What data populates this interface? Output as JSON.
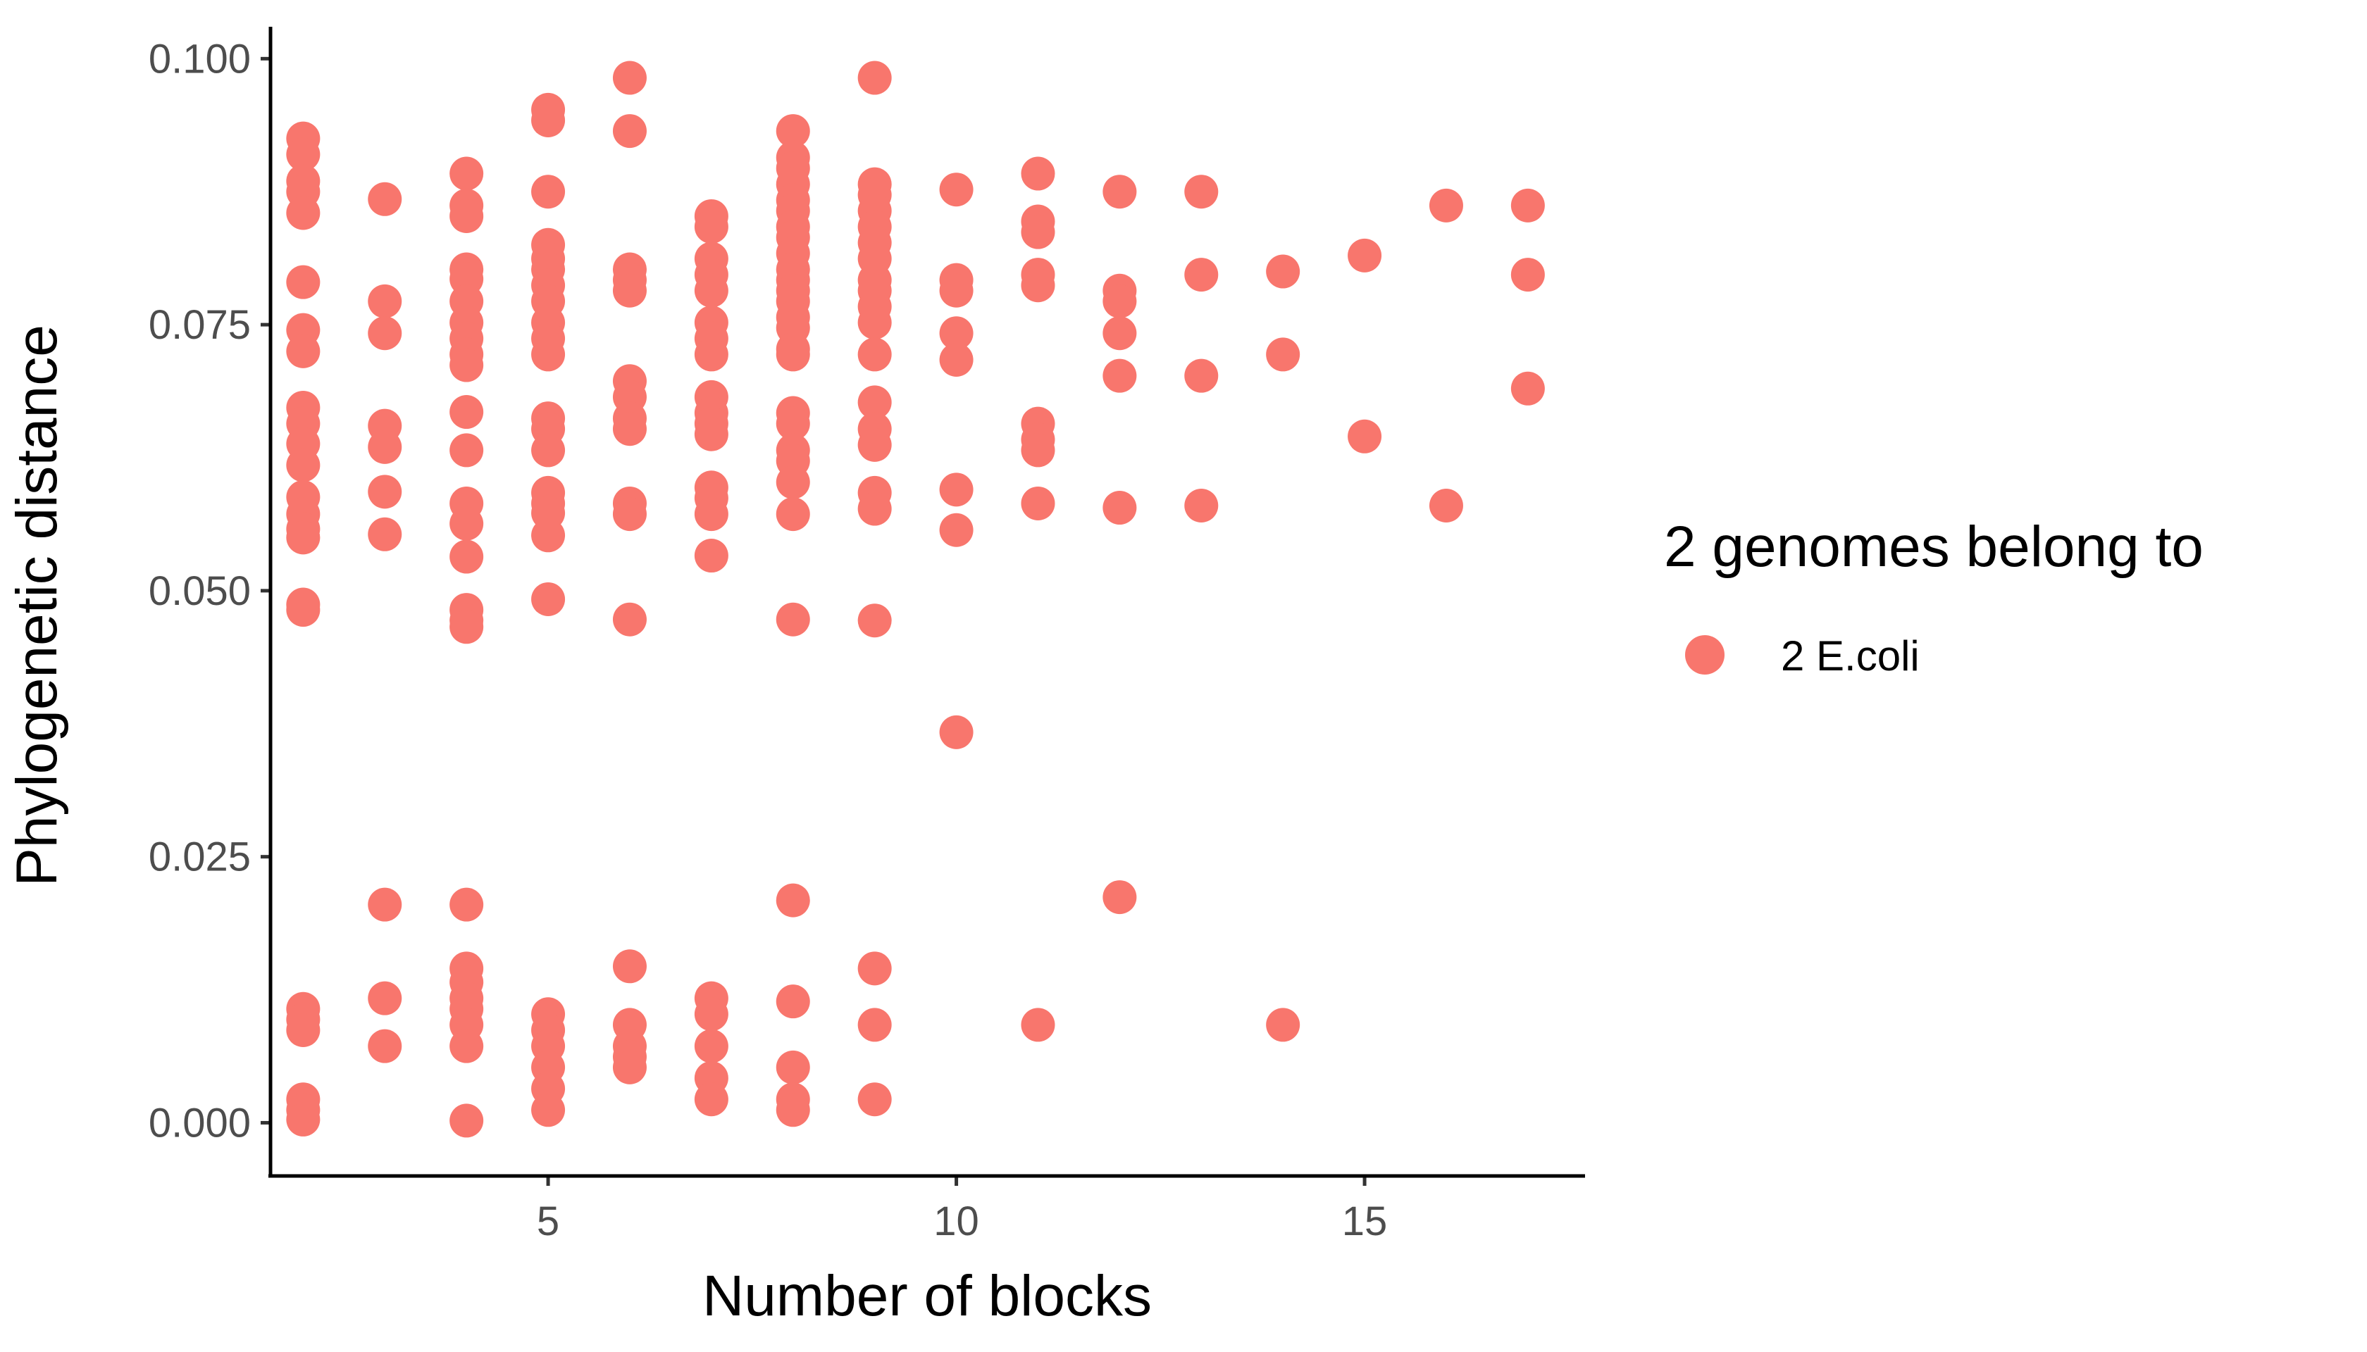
{
  "chart_data": {
    "type": "scatter",
    "xlabel": "Number of blocks",
    "ylabel": "Phylogenetic distance",
    "xlim": [
      1.6,
      17.7
    ],
    "ylim": [
      -0.005,
      0.103
    ],
    "x_ticks": [
      5,
      10,
      15
    ],
    "x_tick_labels": [
      "5",
      "10",
      "15"
    ],
    "y_ticks": [
      0,
      0.025,
      0.05,
      0.075,
      0.1
    ],
    "y_tick_labels": [
      "0.000",
      "0.025",
      "0.050",
      "0.075",
      "0.100"
    ],
    "grid": false,
    "legend": {
      "title": "2 genomes belong to",
      "placement": "right",
      "entries": [
        {
          "label": "2 E.coli",
          "color": "#F8766D"
        }
      ]
    },
    "series": [
      {
        "name": "2 E.coli",
        "color": "#F8766D",
        "points": [
          [
            2,
            0.0925
          ],
          [
            2,
            0.091
          ],
          [
            2,
            0.0885
          ],
          [
            2,
            0.0875
          ],
          [
            2,
            0.0855
          ],
          [
            2,
            0.079
          ],
          [
            2,
            0.0745
          ],
          [
            2,
            0.0725
          ],
          [
            2,
            0.0672
          ],
          [
            2,
            0.0657
          ],
          [
            2,
            0.0638
          ],
          [
            2,
            0.0618
          ],
          [
            2,
            0.0588
          ],
          [
            2,
            0.0572
          ],
          [
            2,
            0.0558
          ],
          [
            2,
            0.055
          ],
          [
            2,
            0.0487
          ],
          [
            2,
            0.0482
          ],
          [
            2,
            0.0107
          ],
          [
            2,
            0.0097
          ],
          [
            2,
            0.0087
          ],
          [
            2,
            0.0022
          ],
          [
            2,
            0.0012
          ],
          [
            2,
            0.0003
          ],
          [
            3,
            0.0868
          ],
          [
            3,
            0.0772
          ],
          [
            3,
            0.0742
          ],
          [
            3,
            0.0655
          ],
          [
            3,
            0.0635
          ],
          [
            3,
            0.0593
          ],
          [
            3,
            0.0553
          ],
          [
            3,
            0.0205
          ],
          [
            3,
            0.0117
          ],
          [
            3,
            0.0072
          ],
          [
            4,
            0.0892
          ],
          [
            4,
            0.0862
          ],
          [
            4,
            0.0852
          ],
          [
            4,
            0.0802
          ],
          [
            4,
            0.0793
          ],
          [
            4,
            0.0772
          ],
          [
            4,
            0.0752
          ],
          [
            4,
            0.0737
          ],
          [
            4,
            0.0722
          ],
          [
            4,
            0.0712
          ],
          [
            4,
            0.0668
          ],
          [
            4,
            0.0632
          ],
          [
            4,
            0.0582
          ],
          [
            4,
            0.0563
          ],
          [
            4,
            0.0532
          ],
          [
            4,
            0.0482
          ],
          [
            4,
            0.0472
          ],
          [
            4,
            0.0466
          ],
          [
            4,
            0.0205
          ],
          [
            4,
            0.0145
          ],
          [
            4,
            0.0132
          ],
          [
            4,
            0.0117
          ],
          [
            4,
            0.0107
          ],
          [
            4,
            0.0092
          ],
          [
            4,
            0.0072
          ],
          [
            4,
            0.0002
          ],
          [
            5,
            0.0952
          ],
          [
            5,
            0.0942
          ],
          [
            5,
            0.0875
          ],
          [
            5,
            0.0825
          ],
          [
            5,
            0.0812
          ],
          [
            5,
            0.0802
          ],
          [
            5,
            0.0787
          ],
          [
            5,
            0.0772
          ],
          [
            5,
            0.0752
          ],
          [
            5,
            0.0737
          ],
          [
            5,
            0.0722
          ],
          [
            5,
            0.0662
          ],
          [
            5,
            0.0652
          ],
          [
            5,
            0.0632
          ],
          [
            5,
            0.0592
          ],
          [
            5,
            0.0582
          ],
          [
            5,
            0.0573
          ],
          [
            5,
            0.0552
          ],
          [
            5,
            0.0492
          ],
          [
            5,
            0.0102
          ],
          [
            5,
            0.0087
          ],
          [
            5,
            0.0072
          ],
          [
            5,
            0.0052
          ],
          [
            5,
            0.0032
          ],
          [
            5,
            0.0012
          ],
          [
            6,
            0.0982
          ],
          [
            6,
            0.0932
          ],
          [
            6,
            0.0802
          ],
          [
            6,
            0.0792
          ],
          [
            6,
            0.0782
          ],
          [
            6,
            0.0697
          ],
          [
            6,
            0.0682
          ],
          [
            6,
            0.0662
          ],
          [
            6,
            0.0652
          ],
          [
            6,
            0.0582
          ],
          [
            6,
            0.0572
          ],
          [
            6,
            0.0473
          ],
          [
            6,
            0.0147
          ],
          [
            6,
            0.0092
          ],
          [
            6,
            0.0072
          ],
          [
            6,
            0.0062
          ],
          [
            6,
            0.0052
          ],
          [
            7,
            0.0852
          ],
          [
            7,
            0.0842
          ],
          [
            7,
            0.0812
          ],
          [
            7,
            0.0797
          ],
          [
            7,
            0.0782
          ],
          [
            7,
            0.0752
          ],
          [
            7,
            0.0737
          ],
          [
            7,
            0.0722
          ],
          [
            7,
            0.0682
          ],
          [
            7,
            0.0667
          ],
          [
            7,
            0.0657
          ],
          [
            7,
            0.0647
          ],
          [
            7,
            0.0597
          ],
          [
            7,
            0.0587
          ],
          [
            7,
            0.0572
          ],
          [
            7,
            0.0533
          ],
          [
            7,
            0.0117
          ],
          [
            7,
            0.0102
          ],
          [
            7,
            0.0072
          ],
          [
            7,
            0.0042
          ],
          [
            7,
            0.0022
          ],
          [
            8,
            0.0932
          ],
          [
            8,
            0.0907
          ],
          [
            8,
            0.0897
          ],
          [
            8,
            0.0882
          ],
          [
            8,
            0.0867
          ],
          [
            8,
            0.0857
          ],
          [
            8,
            0.0842
          ],
          [
            8,
            0.0832
          ],
          [
            8,
            0.0817
          ],
          [
            8,
            0.0802
          ],
          [
            8,
            0.0792
          ],
          [
            8,
            0.0782
          ],
          [
            8,
            0.0772
          ],
          [
            8,
            0.0757
          ],
          [
            8,
            0.0747
          ],
          [
            8,
            0.0727
          ],
          [
            8,
            0.0722
          ],
          [
            8,
            0.0667
          ],
          [
            8,
            0.0657
          ],
          [
            8,
            0.0632
          ],
          [
            8,
            0.0622
          ],
          [
            8,
            0.0602
          ],
          [
            8,
            0.0572
          ],
          [
            8,
            0.0473
          ],
          [
            8,
            0.0209
          ],
          [
            8,
            0.0114
          ],
          [
            8,
            0.0052
          ],
          [
            8,
            0.0022
          ],
          [
            8,
            0.0012
          ],
          [
            9,
            0.0982
          ],
          [
            9,
            0.0882
          ],
          [
            9,
            0.0872
          ],
          [
            9,
            0.0857
          ],
          [
            9,
            0.0842
          ],
          [
            9,
            0.0827
          ],
          [
            9,
            0.0812
          ],
          [
            9,
            0.0792
          ],
          [
            9,
            0.0782
          ],
          [
            9,
            0.0767
          ],
          [
            9,
            0.0752
          ],
          [
            9,
            0.0722
          ],
          [
            9,
            0.0677
          ],
          [
            9,
            0.0652
          ],
          [
            9,
            0.0637
          ],
          [
            9,
            0.0592
          ],
          [
            9,
            0.0577
          ],
          [
            9,
            0.0472
          ],
          [
            9,
            0.0145
          ],
          [
            9,
            0.0092
          ],
          [
            9,
            0.0022
          ],
          [
            10,
            0.0877
          ],
          [
            10,
            0.0792
          ],
          [
            10,
            0.0782
          ],
          [
            10,
            0.0742
          ],
          [
            10,
            0.0717
          ],
          [
            10,
            0.0595
          ],
          [
            10,
            0.0557
          ],
          [
            10,
            0.0367
          ],
          [
            11,
            0.0892
          ],
          [
            11,
            0.0847
          ],
          [
            11,
            0.0837
          ],
          [
            11,
            0.0797
          ],
          [
            11,
            0.0787
          ],
          [
            11,
            0.0657
          ],
          [
            11,
            0.0642
          ],
          [
            11,
            0.0632
          ],
          [
            11,
            0.0582
          ],
          [
            11,
            0.0092
          ],
          [
            12,
            0.0875
          ],
          [
            12,
            0.0782
          ],
          [
            12,
            0.0772
          ],
          [
            12,
            0.0742
          ],
          [
            12,
            0.0702
          ],
          [
            12,
            0.0578
          ],
          [
            12,
            0.0212
          ],
          [
            13,
            0.0875
          ],
          [
            13,
            0.0797
          ],
          [
            13,
            0.0702
          ],
          [
            13,
            0.058
          ],
          [
            14,
            0.08
          ],
          [
            14,
            0.0722
          ],
          [
            14,
            0.0092
          ],
          [
            15,
            0.0815
          ],
          [
            15,
            0.0645
          ],
          [
            16,
            0.0862
          ],
          [
            16,
            0.058
          ],
          [
            17,
            0.0862
          ],
          [
            17,
            0.0797
          ],
          [
            17,
            0.069
          ]
        ]
      }
    ]
  }
}
